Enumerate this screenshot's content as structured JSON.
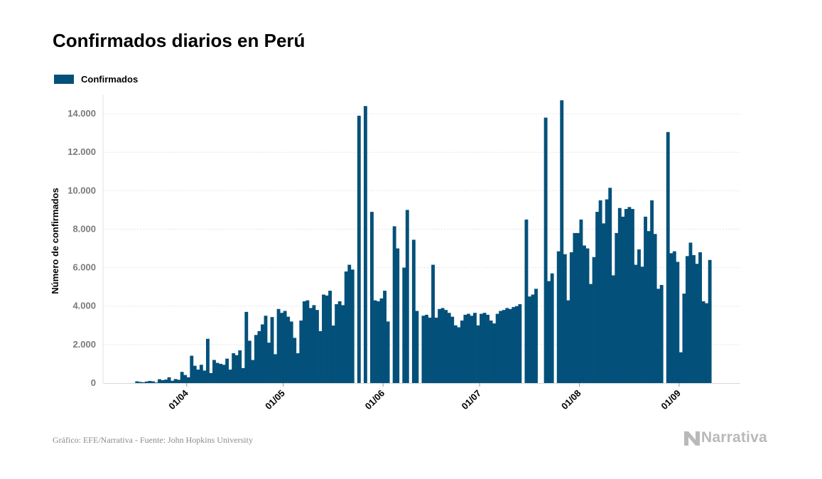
{
  "brand": {
    "name": "Narrativa",
    "color": "#b9b9b9"
  },
  "footer": {
    "source": "Gráfico: EFE/Narrativa - Fuente: John Hopkins University"
  },
  "chart_data": {
    "type": "bar",
    "title": "Confirmados diarios en Perú",
    "ylabel": "Número de confirmados",
    "xlabel": "",
    "ylim": [
      0,
      15000
    ],
    "xlim": [
      "2020-03-06",
      "2020-09-20"
    ],
    "grid": true,
    "legend_position": "top-left",
    "yticks": [
      0,
      2000,
      4000,
      6000,
      8000,
      10000,
      12000,
      14000
    ],
    "ytick_labels": [
      "0",
      "2.000",
      "4.000",
      "6.000",
      "8.000",
      "10.000",
      "12.000",
      "14.000"
    ],
    "xticks": [
      "2020-04-01",
      "2020-05-01",
      "2020-06-01",
      "2020-07-01",
      "2020-08-01",
      "2020-09-01"
    ],
    "xtick_labels": [
      "01/04",
      "01/05",
      "01/06",
      "01/07",
      "01/08",
      "01/09"
    ],
    "series": [
      {
        "name": "Confirmados",
        "color": "#03517a",
        "start_date": "2020-03-16",
        "values": [
          90,
          60,
          40,
          80,
          110,
          90,
          30,
          200,
          150,
          180,
          300,
          120,
          210,
          170,
          580,
          420,
          300,
          1420,
          900,
          700,
          950,
          650,
          2300,
          520,
          1200,
          1050,
          1000,
          950,
          1270,
          700,
          1550,
          1450,
          1700,
          780,
          3700,
          2200,
          1200,
          2500,
          2700,
          3050,
          3500,
          2100,
          3430,
          1500,
          3850,
          3650,
          3750,
          3450,
          3200,
          2350,
          1550,
          3250,
          4250,
          4300,
          3900,
          4050,
          3800,
          2700,
          4600,
          4550,
          4800,
          2990,
          4100,
          4250,
          4050,
          5800,
          6150,
          5900,
          0,
          13900,
          0,
          14400,
          0,
          8900,
          4300,
          4250,
          4400,
          4800,
          3200,
          0,
          8150,
          7000,
          0,
          6000,
          9000,
          0,
          7450,
          3750,
          0,
          3500,
          3550,
          3400,
          6150,
          3400,
          3850,
          3900,
          3800,
          3650,
          3450,
          3000,
          2900,
          3250,
          3550,
          3600,
          3500,
          3650,
          3000,
          3600,
          3650,
          3550,
          3250,
          3100,
          3600,
          3750,
          3800,
          3900,
          3850,
          3950,
          4000,
          4100,
          0,
          8500,
          4500,
          4600,
          4900,
          0,
          0,
          13800,
          5300,
          5700,
          0,
          6850,
          14700,
          6700,
          4300,
          6800,
          7800,
          7800,
          8500,
          7150,
          7000,
          5150,
          6550,
          8900,
          9500,
          8300,
          9550,
          10150,
          5600,
          7800,
          9100,
          8650,
          9050,
          9150,
          9050,
          6150,
          6950,
          6050,
          8650,
          7900,
          9500,
          7750,
          4900,
          5100,
          0,
          13050,
          6750,
          6850,
          6300,
          1600,
          4650,
          6600,
          7300,
          6650,
          6200,
          6800,
          4250,
          4150,
          6400
        ]
      }
    ]
  }
}
